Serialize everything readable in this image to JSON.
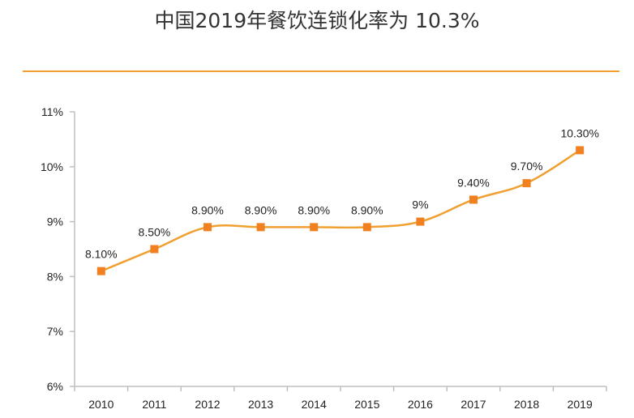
{
  "title": "中国2019年餐饮连锁化率为 10.3%",
  "colors": {
    "accent": "#F0A030",
    "line": "#F0A030",
    "marker": "#F08020"
  },
  "chart_data": {
    "type": "line",
    "title": "中国2019年餐饮连锁化率为 10.3%",
    "xlabel": "",
    "ylabel": "",
    "x": [
      "2010",
      "2011",
      "2012",
      "2013",
      "2014",
      "2015",
      "2016",
      "2017",
      "2018",
      "2019"
    ],
    "ylim": [
      6,
      11
    ],
    "yticks": [
      6,
      7,
      8,
      9,
      10,
      11
    ],
    "ytick_labels": [
      "6%",
      "7%",
      "8%",
      "9%",
      "10%",
      "11%"
    ],
    "grid": false,
    "legend": "none",
    "series": [
      {
        "values": [
          8.1,
          8.5,
          8.9,
          8.9,
          8.9,
          8.9,
          9.0,
          9.4,
          9.7,
          10.3
        ],
        "labels": [
          "8.10%",
          "8.50%",
          "8.90%",
          "8.90%",
          "8.90%",
          "8.90%",
          "9%",
          "9.40%",
          "9.70%",
          "10.30%"
        ]
      }
    ]
  }
}
